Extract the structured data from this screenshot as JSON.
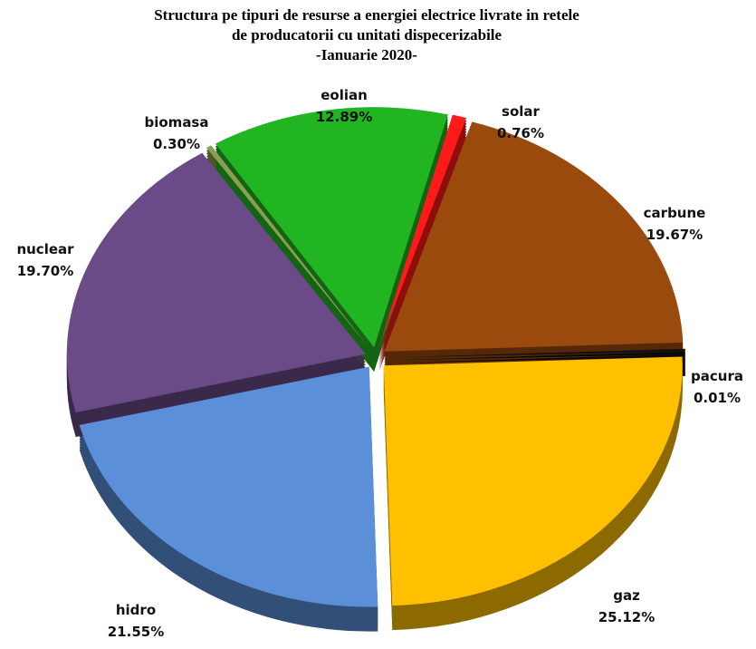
{
  "chart_data": {
    "type": "pie",
    "title": [
      "Structura  pe tipuri  de resurse a energiei electrice livrate  in retele",
      "de producatorii  cu unitati  dispecerizabile",
      "-Ianuarie  2020-"
    ],
    "categories": [
      "solar",
      "carbune",
      "pacura",
      "gaz",
      "hidro",
      "nuclear",
      "biomasa",
      "eolian"
    ],
    "values": [
      0.76,
      19.67,
      0.01,
      25.12,
      21.55,
      19.7,
      0.3,
      12.89
    ],
    "value_labels": [
      "0.76%",
      "19.67%",
      "0.01%",
      "25.12%",
      "21.55%",
      "19.70%",
      "0.30%",
      "12.89%"
    ],
    "colors": [
      "#ff1a1a",
      "#9a4a0c",
      "#111111",
      "#ffc000",
      "#5b8fd8",
      "#6a4b88",
      "#8aa050",
      "#22b522"
    ]
  }
}
